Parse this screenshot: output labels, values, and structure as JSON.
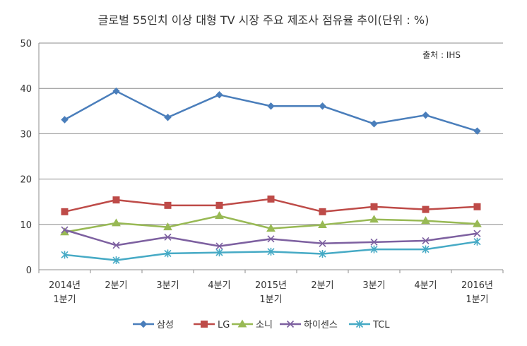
{
  "chart_data": {
    "type": "line",
    "title": "글로벌 55인치 이상 대형 TV 시장 주요 제조사 점유율 추이(단위 : %)",
    "source": "출처 : IHS",
    "categories": [
      [
        "2014년",
        "1분기"
      ],
      [
        "2분기"
      ],
      [
        "3분기"
      ],
      [
        "4분기"
      ],
      [
        "2015년",
        "1분기"
      ],
      [
        "2분기"
      ],
      [
        "3분기"
      ],
      [
        "4분기"
      ],
      [
        "2016년",
        "1분기"
      ]
    ],
    "ylim": [
      0,
      50
    ],
    "yticks": [
      "0",
      "10",
      "20",
      "30",
      "40",
      "50"
    ],
    "grid": true,
    "legend_position": "bottom",
    "series": [
      {
        "name": "삼성",
        "color": "#4a7ebb",
        "marker": "diamond",
        "values": [
          33.1,
          39.4,
          33.6,
          38.6,
          36.1,
          36.1,
          32.2,
          34.1,
          30.6
        ]
      },
      {
        "name": "LG",
        "color": "#be4b48",
        "marker": "square",
        "values": [
          12.8,
          15.4,
          14.2,
          14.2,
          15.6,
          12.8,
          13.9,
          13.3,
          13.9
        ]
      },
      {
        "name": "소니",
        "color": "#98b954",
        "marker": "triangle",
        "values": [
          8.3,
          10.3,
          9.4,
          11.9,
          9.1,
          9.9,
          11.1,
          10.8,
          10.1
        ]
      },
      {
        "name": "하이센스",
        "color": "#7d60a0",
        "marker": "x",
        "values": [
          8.8,
          5.4,
          7.2,
          5.2,
          6.8,
          5.8,
          6.1,
          6.4,
          8.0
        ]
      },
      {
        "name": "TCL",
        "color": "#46aac5",
        "marker": "asterisk",
        "values": [
          3.3,
          2.1,
          3.6,
          3.8,
          4.0,
          3.5,
          4.5,
          4.5,
          6.2
        ]
      }
    ]
  }
}
